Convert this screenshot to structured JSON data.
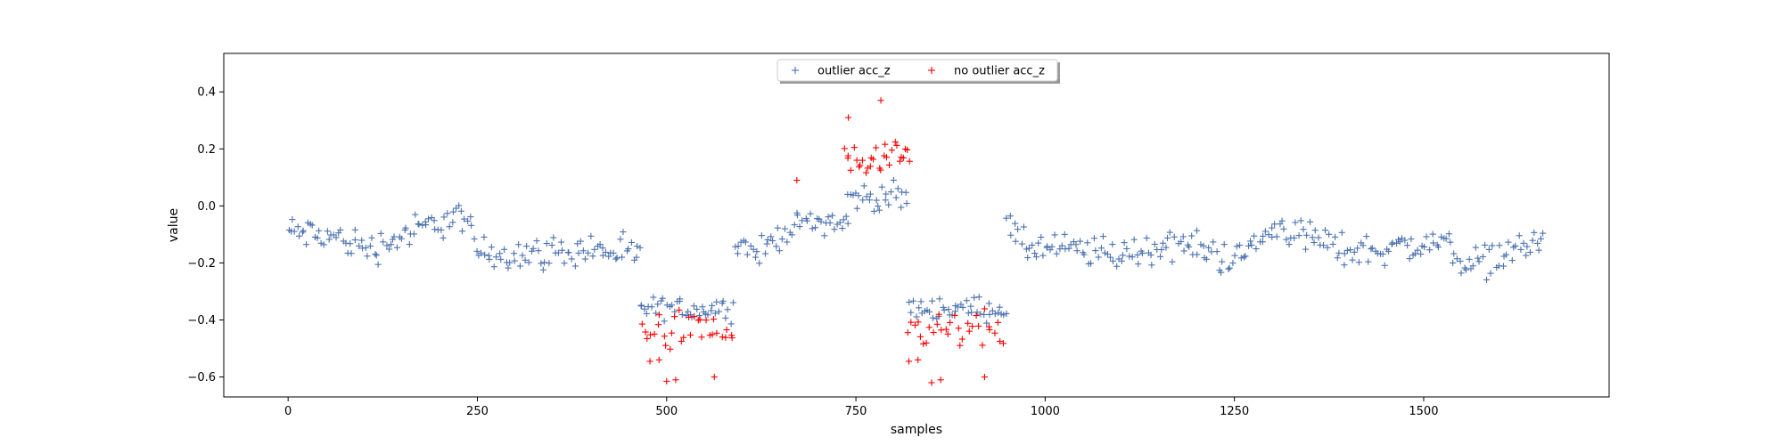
{
  "chart_data": {
    "type": "scatter",
    "title": "",
    "xlabel": "samples",
    "ylabel": "value",
    "xlim": [
      -85,
      1745
    ],
    "ylim": [
      -0.67,
      0.535
    ],
    "x_ticks": [
      0,
      250,
      500,
      750,
      1000,
      1250,
      1500
    ],
    "y_ticks": [
      -0.6,
      -0.4,
      -0.2,
      0.0,
      0.2,
      0.4
    ],
    "x_tick_labels": [
      "0",
      "250",
      "500",
      "750",
      "1000",
      "1250",
      "1500"
    ],
    "y_tick_labels": [
      "−0.6",
      "−0.4",
      "−0.2",
      "0.0",
      "0.2",
      "0.4"
    ],
    "grid": false,
    "legend": {
      "placement": "top-center",
      "columns": 2
    },
    "colors": {
      "outlier": "#4C72B0",
      "no_outlier": "#FF0000"
    },
    "series": [
      {
        "name": "outlier acc_z",
        "color": "#4C72B0",
        "marker": "+",
        "segments": [
          {
            "x_start": 0,
            "x_end": 465,
            "step": 3,
            "profile": [
              [
                0,
                -0.09
              ],
              [
                60,
                -0.11
              ],
              [
                110,
                -0.15
              ],
              [
                175,
                -0.08
              ],
              [
                230,
                -0.03
              ],
              [
                250,
                -0.16
              ],
              [
                320,
                -0.17
              ],
              [
                400,
                -0.15
              ],
              [
                465,
                -0.18
              ]
            ],
            "spread": 0.05
          },
          {
            "x_start": 465,
            "x_end": 590,
            "step": 3,
            "profile": [
              [
                465,
                -0.36
              ],
              [
                590,
                -0.36
              ]
            ],
            "spread": 0.035
          },
          {
            "x_start": 590,
            "x_end": 740,
            "step": 3,
            "profile": [
              [
                590,
                -0.12
              ],
              [
                620,
                -0.17
              ],
              [
                660,
                -0.08
              ],
              [
                700,
                -0.05
              ],
              [
                740,
                -0.06
              ]
            ],
            "spread": 0.04
          },
          {
            "x_start": 740,
            "x_end": 820,
            "step": 3,
            "profile": [
              [
                740,
                0.03
              ],
              [
                820,
                0.03
              ]
            ],
            "spread": 0.04
          },
          {
            "x_start": 820,
            "x_end": 950,
            "step": 3,
            "profile": [
              [
                820,
                -0.36
              ],
              [
                950,
                -0.36
              ]
            ],
            "spread": 0.035
          },
          {
            "x_start": 950,
            "x_end": 1660,
            "step": 3,
            "profile": [
              [
                950,
                -0.05
              ],
              [
                965,
                -0.14
              ],
              [
                1100,
                -0.17
              ],
              [
                1180,
                -0.13
              ],
              [
                1250,
                -0.19
              ],
              [
                1310,
                -0.07
              ],
              [
                1400,
                -0.16
              ],
              [
                1530,
                -0.13
              ],
              [
                1560,
                -0.21
              ],
              [
                1660,
                -0.12
              ]
            ],
            "spread": 0.05
          }
        ]
      },
      {
        "name": "no outlier acc_z",
        "color": "#FF0000",
        "marker": "+",
        "segments": [
          {
            "x_start": 468,
            "x_end": 588,
            "step": 4,
            "profile": [
              [
                468,
                -0.44
              ],
              [
                588,
                -0.44
              ]
            ],
            "spread": 0.06
          },
          {
            "x_start": 735,
            "x_end": 822,
            "step": 3,
            "profile": [
              [
                735,
                0.15
              ],
              [
                822,
                0.15
              ]
            ],
            "spread": 0.06
          },
          {
            "x_start": 820,
            "x_end": 945,
            "step": 4,
            "profile": [
              [
                820,
                -0.44
              ],
              [
                945,
                -0.44
              ]
            ],
            "spread": 0.06
          }
        ],
        "points": [
          [
            740,
            0.31
          ],
          [
            783,
            0.37
          ],
          [
            672,
            0.09
          ],
          [
            478,
            -0.545
          ],
          [
            490,
            -0.54
          ],
          [
            500,
            -0.615
          ],
          [
            512,
            -0.61
          ],
          [
            563,
            -0.6
          ],
          [
            820,
            -0.545
          ],
          [
            832,
            -0.54
          ],
          [
            850,
            -0.62
          ],
          [
            862,
            -0.61
          ],
          [
            920,
            -0.6
          ]
        ]
      }
    ]
  }
}
